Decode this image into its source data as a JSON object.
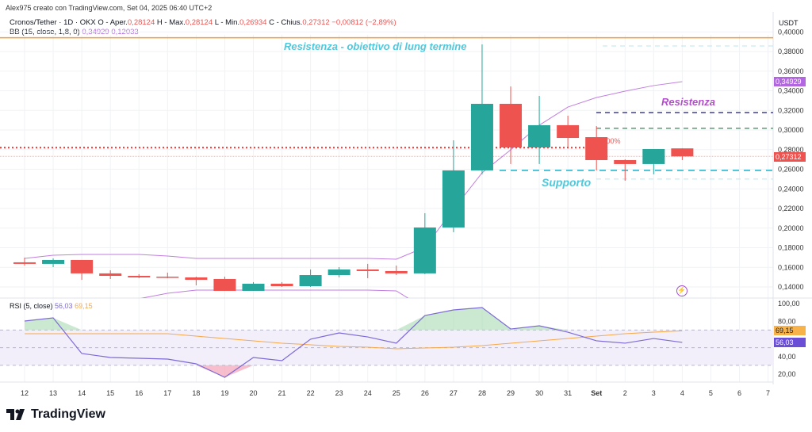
{
  "header": {
    "creator": "Alex975 creato con TradingView.com, Set 04, 2025 06:40 UTC+2",
    "symbol": "Cronos/Tether · 1D · OKX",
    "open_label": "O - Aper.",
    "open": "0,28124",
    "high_label": "H - Max.",
    "high": "0,28124",
    "low_label": "L - Min.",
    "low": "0,26934",
    "close_label": "C - Chius.",
    "close": "0,27312",
    "change": "−0,00812 (−2,89%)",
    "bb_label": "BB (15, close, 1,8, 0)",
    "bb_upper": "0,34929",
    "bb_lower": "0,12033",
    "rsi_label": "RSI (5, close)",
    "rsi_value": "56,03",
    "rsi_ma": "69,15"
  },
  "axis": {
    "currency": "USDT",
    "price_ticks": [
      "0,40000",
      "0,38000",
      "0,36000",
      "0,34000",
      "0,32000",
      "0,30000",
      "0,28000",
      "0,26000",
      "0,24000",
      "0,22000",
      "0,20000",
      "0,18000",
      "0,16000",
      "0,14000"
    ],
    "rsi_ticks": [
      "100,00",
      "80,00",
      "40,00",
      "20,00"
    ],
    "x_ticks": [
      "12",
      "13",
      "14",
      "15",
      "16",
      "17",
      "18",
      "19",
      "20",
      "21",
      "22",
      "23",
      "24",
      "25",
      "26",
      "27",
      "28",
      "29",
      "30",
      "31",
      "Set",
      "2",
      "3",
      "4",
      "5",
      "6",
      "7"
    ]
  },
  "badges": {
    "bb_upper": "0,34929",
    "last_price": "0,27312",
    "rsi_ma": "69,15",
    "rsi": "56,03"
  },
  "annotations": {
    "long_term": "Resistenza - obiettivo di lung termine",
    "resistance": "Resistenza",
    "support": "Supporto",
    "pct": "0,00%"
  },
  "colors": {
    "up": "#26a69a",
    "down": "#ef5350",
    "bb": "#c27ee0",
    "rsi": "#7e6ad6",
    "rsi_ma": "#f7a84a",
    "cyan": "#4fc8dc",
    "navy": "#3f3d9e",
    "green": "#5a9a78",
    "orange": "#f39c35"
  },
  "brand": "TradingView",
  "chart_data": {
    "type": "candlestick",
    "dates": [
      "12",
      "13",
      "14",
      "15",
      "16",
      "17",
      "18",
      "19",
      "20",
      "21",
      "22",
      "23",
      "24",
      "25",
      "26",
      "27",
      "28",
      "29",
      "30",
      "31",
      "Set",
      "2",
      "3",
      "4"
    ],
    "ohlc": [
      [
        0.1651,
        0.1699,
        0.1618,
        0.1635
      ],
      [
        0.1635,
        0.1691,
        0.1602,
        0.1675
      ],
      [
        0.1675,
        0.1675,
        0.1473,
        0.1538
      ],
      [
        0.1538,
        0.157,
        0.1481,
        0.1513
      ],
      [
        0.1513,
        0.153,
        0.1489,
        0.1497
      ],
      [
        0.1505,
        0.1546,
        0.1489,
        0.1497
      ],
      [
        0.1497,
        0.1505,
        0.1416,
        0.1473
      ],
      [
        0.1481,
        0.1505,
        0.136,
        0.136
      ],
      [
        0.136,
        0.1449,
        0.136,
        0.1433
      ],
      [
        0.1433,
        0.1449,
        0.14,
        0.1408
      ],
      [
        0.1408,
        0.1578,
        0.14,
        0.1521
      ],
      [
        0.1521,
        0.1602,
        0.1497,
        0.1578
      ],
      [
        0.1578,
        0.1635,
        0.1489,
        0.1562
      ],
      [
        0.1562,
        0.1618,
        0.1521,
        0.1538
      ],
      [
        0.1538,
        0.2152,
        0.153,
        0.2006
      ],
      [
        0.2006,
        0.2895,
        0.1958,
        0.2588
      ],
      [
        0.2588,
        0.3873,
        0.2548,
        0.3267
      ],
      [
        0.3267,
        0.3444,
        0.2653,
        0.2822
      ],
      [
        0.2822,
        0.3348,
        0.2653,
        0.3049
      ],
      [
        0.3049,
        0.3146,
        0.2822,
        0.2919
      ],
      [
        0.2927,
        0.304,
        0.2588,
        0.2693
      ],
      [
        0.2693,
        0.2701,
        0.2483,
        0.2653
      ],
      [
        0.2653,
        0.2806,
        0.2548,
        0.2806
      ],
      [
        0.28124,
        0.28124,
        0.26934,
        0.27312
      ]
    ],
    "bb_upper": [
      0.1691,
      0.1723,
      0.1731,
      0.1731,
      0.1731,
      0.1715,
      0.1691,
      0.1691,
      0.1691,
      0.1691,
      0.1691,
      0.1691,
      0.1691,
      0.1683,
      0.1804,
      0.2192,
      0.2564,
      0.2798,
      0.3049,
      0.3234,
      0.3331,
      0.3396,
      0.3453,
      0.34929
    ],
    "bb_lower": [
      0.125,
      0.124,
      0.122,
      0.123,
      0.128,
      0.1335,
      0.1368,
      0.1368,
      0.1368,
      0.1368,
      0.1368,
      0.1368,
      0.1368,
      0.136,
      0.118,
      0.1,
      0.09,
      0.095,
      0.1,
      0.105,
      0.11,
      0.113,
      0.117,
      0.12033
    ],
    "rsi": [
      80.2,
      83.8,
      43.4,
      38.9,
      38.0,
      37.1,
      31.7,
      16.4,
      38.9,
      35.3,
      59.6,
      66.7,
      62.2,
      55.1,
      86.5,
      92.8,
      95.5,
      71.2,
      74.8,
      67.6,
      57.8,
      55.1,
      60.4,
      56.03
    ],
    "rsi_ma": [
      65.8,
      65.8,
      65.8,
      65.8,
      65.8,
      65.8,
      63.1,
      60.4,
      57.8,
      55.1,
      53.3,
      51.5,
      50.6,
      48.8,
      49.7,
      50.6,
      52.4,
      55.1,
      57.8,
      60.4,
      63.1,
      65.8,
      67.6,
      69.15
    ],
    "rsi_bands": [
      70,
      50,
      30
    ],
    "levels": {
      "long_term_resistance": 0.394,
      "top_target": 0.3857,
      "resistance_1": 0.3178,
      "resistance_2": 0.3017,
      "prev_close": 0.282,
      "support": 0.2588,
      "support_low": 0.25
    },
    "price_range": [
      0.13,
      0.405
    ],
    "rsi_range": [
      10,
      105
    ]
  }
}
